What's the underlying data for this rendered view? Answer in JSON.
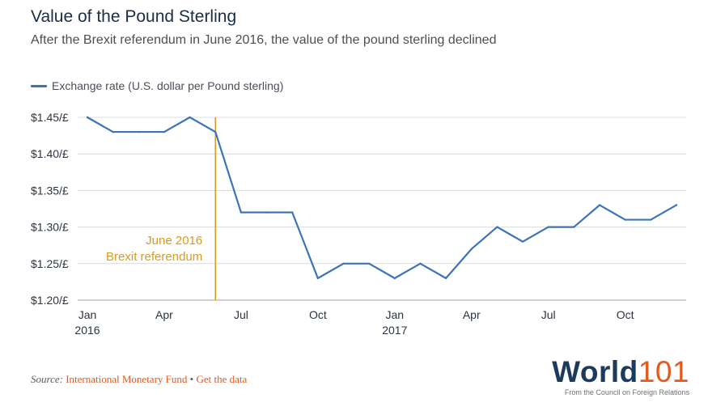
{
  "title": "Value of the Pound Sterling",
  "subtitle": "After the Brexit referendum in June 2016, the value of the pound sterling declined",
  "colors": {
    "series": "#3d74b6",
    "annotation": "#d89a1c",
    "grid": "#d9dcdf",
    "brand_accent": "#e25a1c",
    "brand_main": "#1b3a5c"
  },
  "chart_data": {
    "type": "line",
    "grid": true,
    "legend_placement": "top-left",
    "ylim": [
      1.2,
      1.45
    ],
    "y_ticks": [
      1.45,
      1.4,
      1.35,
      1.3,
      1.25,
      1.2
    ],
    "y_tick_labels": [
      "$1.45/£",
      "$1.40/£",
      "$1.35/£",
      "$1.30/£",
      "$1.25/£",
      "$1.20/£"
    ],
    "x_range": [
      "2016-01",
      "2017-12"
    ],
    "x_ticks": [
      {
        "x": "2016-01",
        "label": "Jan",
        "sublabel": "2016"
      },
      {
        "x": "2016-04",
        "label": "Apr",
        "sublabel": ""
      },
      {
        "x": "2016-07",
        "label": "Jul",
        "sublabel": ""
      },
      {
        "x": "2016-10",
        "label": "Oct",
        "sublabel": ""
      },
      {
        "x": "2017-01",
        "label": "Jan",
        "sublabel": "2017"
      },
      {
        "x": "2017-04",
        "label": "Apr",
        "sublabel": ""
      },
      {
        "x": "2017-07",
        "label": "Jul",
        "sublabel": ""
      },
      {
        "x": "2017-10",
        "label": "Oct",
        "sublabel": ""
      }
    ],
    "series": [
      {
        "name": "Exchange rate (U.S. dollar per Pound sterling)",
        "x": [
          "2016-01",
          "2016-02",
          "2016-03",
          "2016-04",
          "2016-05",
          "2016-06",
          "2016-07",
          "2016-08",
          "2016-09",
          "2016-10",
          "2016-11",
          "2016-12",
          "2017-01",
          "2017-02",
          "2017-03",
          "2017-04",
          "2017-05",
          "2017-06",
          "2017-07",
          "2017-08",
          "2017-09",
          "2017-10",
          "2017-11",
          "2017-12"
        ],
        "values": [
          1.45,
          1.43,
          1.43,
          1.43,
          1.45,
          1.43,
          1.32,
          1.32,
          1.32,
          1.23,
          1.25,
          1.25,
          1.23,
          1.25,
          1.23,
          1.27,
          1.3,
          1.28,
          1.3,
          1.3,
          1.33,
          1.31,
          1.31,
          1.33
        ]
      }
    ],
    "annotations": [
      {
        "x": "2016-06",
        "lines": [
          "June 2016",
          "Brexit referendum"
        ]
      }
    ]
  },
  "source": {
    "label": "Source:",
    "source_name": "International Monetary Fund",
    "separator": "•",
    "data_link": "Get the data"
  },
  "brand": {
    "word": "World",
    "number": "101",
    "tagline": "From the Council on Foreign Relations"
  }
}
